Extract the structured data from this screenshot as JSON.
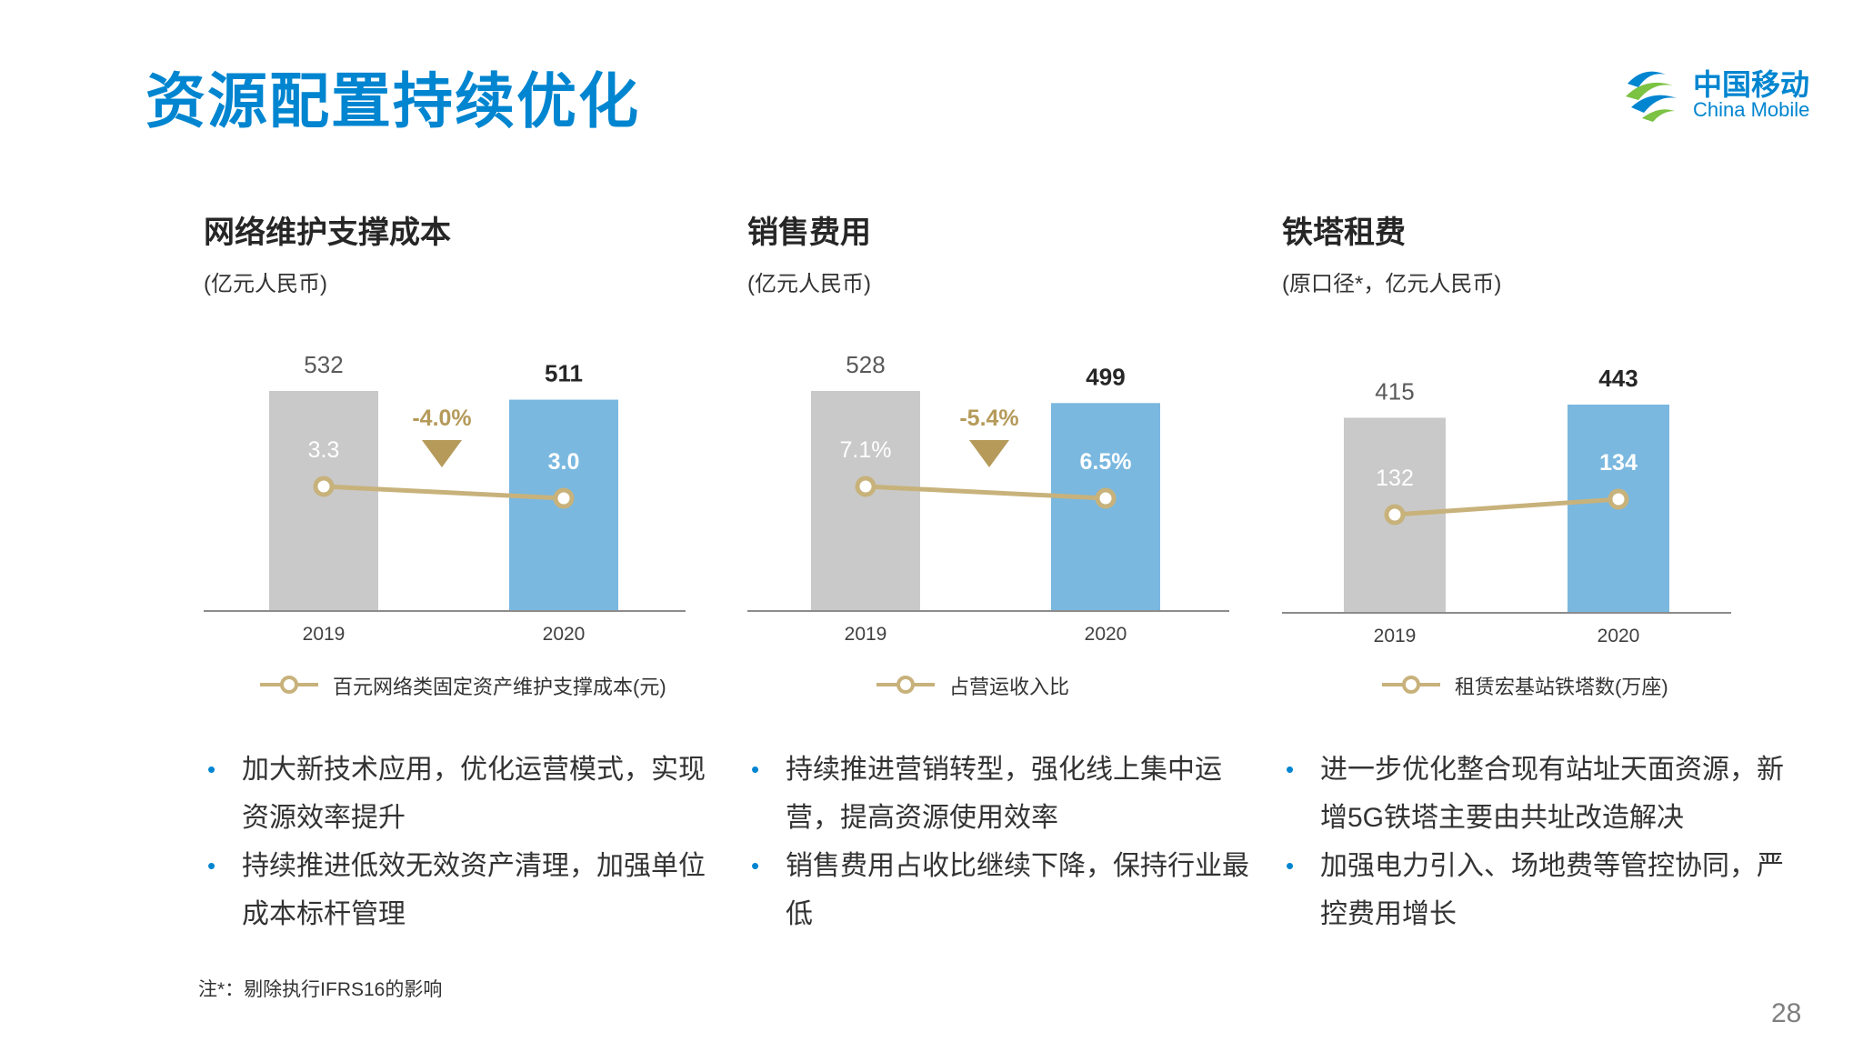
{
  "title": "资源配置持续优化",
  "logo": {
    "cn": "中国移动",
    "en": "China Mobile"
  },
  "footnote": "注*：剔除执行IFRS16的影响",
  "page_number": "28",
  "colors": {
    "title": "#0085D0",
    "bar_2019": "#C9C9C9",
    "bar_2020": "#7AB8E0",
    "line": "#C8B27B",
    "change": "#B59A5A"
  },
  "panels": [
    {
      "title": "网络维护支撑成本",
      "unit": "(亿元人民币)",
      "legend": "百元网络类固定资产维护支撑成本(元)",
      "change": "-4.0%",
      "bullets": [
        "加大新技术应用，优化运营模式，实现资源效率提升",
        "持续推进低效无效资产清理，加强单位成本标杆管理"
      ]
    },
    {
      "title": "销售费用",
      "unit": "(亿元人民币)",
      "legend": "占营运收入比",
      "change": "-5.4%",
      "bullets": [
        "持续推进营销转型，强化线上集中运营，提高资源使用效率",
        "销售费用占收比继续下降，保持行业最低"
      ]
    },
    {
      "title": "铁塔租费",
      "unit": "(原口径*，亿元人民币)",
      "legend": "租赁宏基站铁塔数(万座)",
      "change": "",
      "bullets": [
        "进一步优化整合现有站址天面资源，新增5G铁塔主要由共址改造解决",
        "加强电力引入、场地费等管控协同，严控费用增长"
      ]
    }
  ],
  "chart_data": [
    {
      "type": "bar",
      "title": "网络维护支撑成本",
      "categories": [
        "2019",
        "2020"
      ],
      "series": [
        {
          "name": "网络维护支撑成本",
          "values": [
            532,
            511
          ],
          "labels": [
            "532",
            "511"
          ]
        },
        {
          "name": "百元网络类固定资产维护支撑成本(元)",
          "type": "line",
          "values": [
            3.3,
            3.0
          ],
          "labels": [
            "3.3",
            "3.0"
          ]
        }
      ],
      "ylim": [
        0,
        600
      ],
      "annotation": "-4.0%"
    },
    {
      "type": "bar",
      "title": "销售费用",
      "categories": [
        "2019",
        "2020"
      ],
      "series": [
        {
          "name": "销售费用",
          "values": [
            528,
            499
          ],
          "labels": [
            "528",
            "499"
          ]
        },
        {
          "name": "占营运收入比",
          "type": "line",
          "values": [
            7.1,
            6.5
          ],
          "labels": [
            "7.1%",
            "6.5%"
          ]
        }
      ],
      "ylim": [
        0,
        600
      ],
      "annotation": "-5.4%"
    },
    {
      "type": "bar",
      "title": "铁塔租费",
      "categories": [
        "2019",
        "2020"
      ],
      "series": [
        {
          "name": "铁塔租费",
          "values": [
            415,
            443
          ],
          "labels": [
            "415",
            "443"
          ]
        },
        {
          "name": "租赁宏基站铁塔数(万座)",
          "type": "line",
          "values": [
            132,
            134
          ],
          "labels": [
            "132",
            "134"
          ]
        }
      ],
      "ylim": [
        0,
        520
      ]
    }
  ]
}
